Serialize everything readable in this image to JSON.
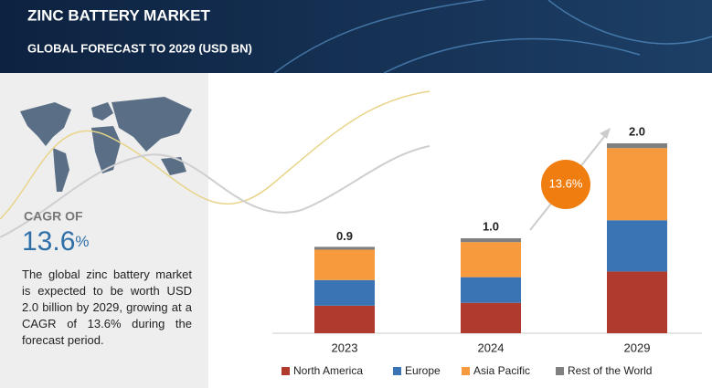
{
  "header": {
    "title": "ZINC BATTERY MARKET",
    "subtitle": "GLOBAL FORECAST TO 2029 (USD BN)"
  },
  "cagr": {
    "label": "CAGR OF",
    "value": "13.6",
    "unit": "%"
  },
  "description": "The global zinc battery market is expected to be worth USD 2.0 billion by 2029, growing at a CAGR of 13.6% during the forecast period.",
  "chart_data": {
    "type": "stacked_bar",
    "categories": [
      "2023",
      "2024",
      "2029"
    ],
    "series": [
      {
        "name": "North America",
        "color": "#b03a2e",
        "values": [
          0.29,
          0.32,
          0.65
        ]
      },
      {
        "name": "Europe",
        "color": "#3a74b4",
        "values": [
          0.27,
          0.27,
          0.54
        ]
      },
      {
        "name": "Asia Pacific",
        "color": "#f79a3e",
        "values": [
          0.32,
          0.37,
          0.76
        ]
      },
      {
        "name": "Rest of the World",
        "color": "#808080",
        "values": [
          0.03,
          0.04,
          0.05
        ]
      }
    ],
    "totals": [
      0.9,
      1.0,
      2.0
    ],
    "total_labels": [
      "0.9",
      "1.0",
      "2.0"
    ],
    "annotation": "13.6%"
  }
}
